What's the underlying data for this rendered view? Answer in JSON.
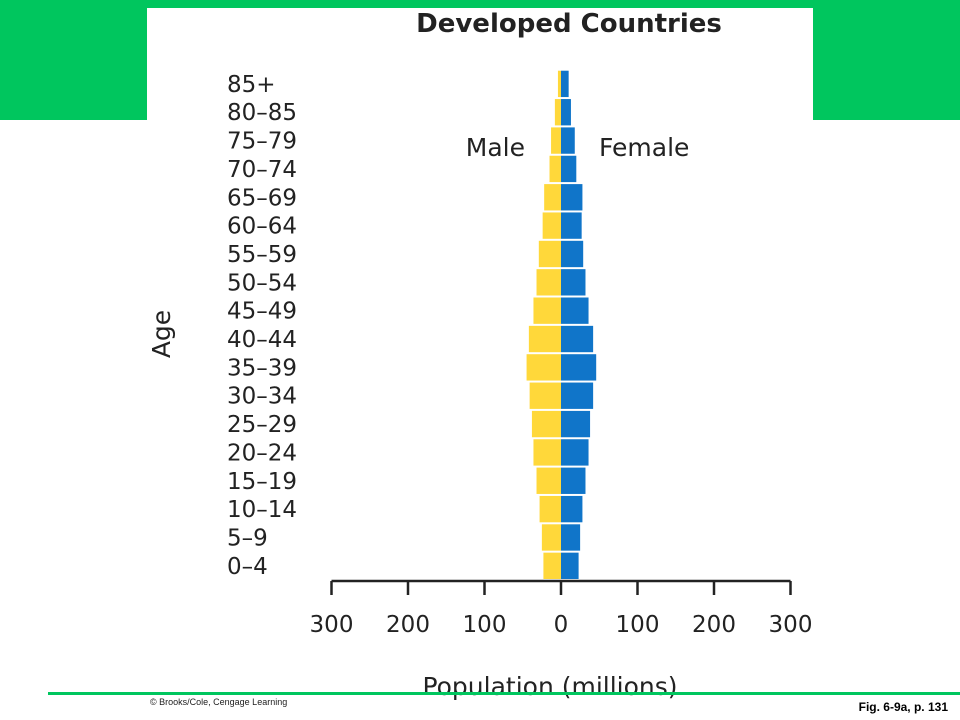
{
  "slide": {
    "copyright": "© Brooks/Cole, Cengage Learning",
    "caption": "Fig. 6-9a, p. 131",
    "band_color": "#00c65e"
  },
  "chart_data": {
    "type": "bar",
    "orientation": "horizontal-population-pyramid",
    "title": "Developed Countries",
    "xlabel": "Population (millions)",
    "ylabel": "Age",
    "xlim": [
      -300,
      300
    ],
    "xticks": [
      {
        "value": -300,
        "label": "300"
      },
      {
        "value": -200,
        "label": "200"
      },
      {
        "value": -100,
        "label": "100"
      },
      {
        "value": 0,
        "label": "0"
      },
      {
        "value": 100,
        "label": "100"
      },
      {
        "value": 200,
        "label": "200"
      },
      {
        "value": 300,
        "label": "300"
      }
    ],
    "categories": [
      "0–4",
      "5–9",
      "10–14",
      "15–19",
      "20–24",
      "25–29",
      "30–34",
      "35–39",
      "40–44",
      "45–49",
      "50–54",
      "55–59",
      "60–64",
      "65–69",
      "70–74",
      "75–79",
      "80–85",
      "85+"
    ],
    "series": [
      {
        "name": "Male",
        "color": "#ffd83a",
        "values": [
          23,
          25,
          28,
          32,
          36,
          38,
          41,
          45,
          42,
          36,
          32,
          29,
          24,
          22,
          15,
          13,
          8,
          4
        ]
      },
      {
        "name": "Female",
        "color": "#1075c9",
        "values": [
          23,
          25,
          28,
          32,
          36,
          38,
          42,
          46,
          42,
          36,
          32,
          29,
          27,
          28,
          20,
          18,
          13,
          10
        ]
      }
    ]
  }
}
